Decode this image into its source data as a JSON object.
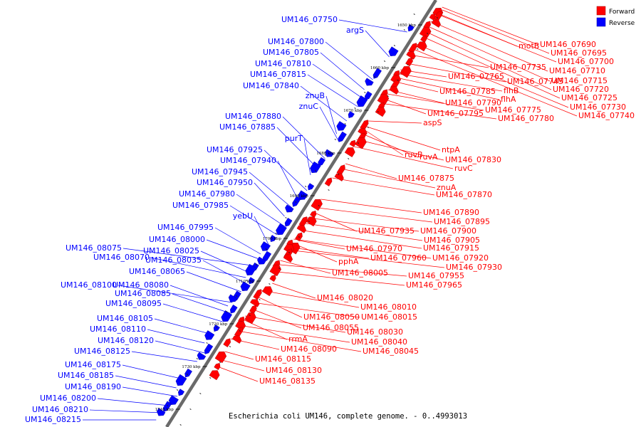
{
  "caption": "Escherichia coli UM146, complete genome. - 0..4993013",
  "legend": [
    {
      "label": "Forward",
      "color": "#ff0000"
    },
    {
      "label": "Reverse",
      "color": "#0000ff"
    }
  ],
  "ticks": [
    "1650 kbp",
    "1660 kbp",
    "1670 kbp",
    "1680 kbp",
    "1690 kbp",
    "1700 kbp",
    "1710 kbp",
    "1720 kbp",
    "1730 kbp",
    "1740 kbp"
  ],
  "reverse_genes": [
    "UM146_07750",
    "argS",
    "UM146_07800",
    "UM146_07805",
    "UM146_07810",
    "UM146_07815",
    "UM146_07840",
    "znuB",
    "znuC",
    "UM146_07880",
    "UM146_07885",
    "purT",
    "UM146_07925",
    "UM146_07940",
    "UM146_07945",
    "UM146_07950",
    "UM146_07980",
    "UM146_07985",
    "yebU",
    "UM146_07995",
    "UM146_08000",
    "UM146_08075",
    "UM146_08025",
    "UM146_08070",
    "UM146_08035",
    "UM146_08065",
    "UM146_08100",
    "UM146_08080",
    "UM146_08085",
    "UM146_08095",
    "UM146_08105",
    "UM146_08110",
    "UM146_08120",
    "UM146_08125",
    "UM146_08175",
    "UM146_08185",
    "UM146_08190",
    "UM146_08200",
    "UM146_08210",
    "UM146_08215"
  ],
  "forward_genes": [
    "motB",
    "UM146_07690",
    "UM146_07695",
    "UM146_07700",
    "UM146_07710",
    "UM146_07715",
    "UM146_07720",
    "UM146_07725",
    "UM146_07730",
    "UM146_07740",
    "UM146_07735",
    "UM146_07745",
    "UM146_07765",
    "flhB",
    "flhA",
    "UM146_07785",
    "UM146_07790",
    "UM146_07775",
    "UM146_07795",
    "UM146_07780",
    "aspS",
    "ntpA",
    "ruvB",
    "ruvA",
    "UM146_07830",
    "ruvC",
    "UM146_07875",
    "znuA",
    "UM146_07870",
    "UM146_07890",
    "UM146_07895",
    "UM146_07935",
    "UM146_07900",
    "UM146_07905",
    "UM146_07915",
    "UM146_07970",
    "UM146_07920",
    "pphA",
    "UM146_07960",
    "UM146_07930",
    "UM146_08005",
    "UM146_07955",
    "UM146_07965",
    "UM146_08020",
    "UM146_08010",
    "UM146_08050",
    "UM146_08015",
    "UM146_08055",
    "UM146_08030",
    "rrmA",
    "UM146_08040",
    "UM146_08045",
    "UM146_08090",
    "UM146_08115",
    "UM146_08130",
    "UM146_08135"
  ]
}
